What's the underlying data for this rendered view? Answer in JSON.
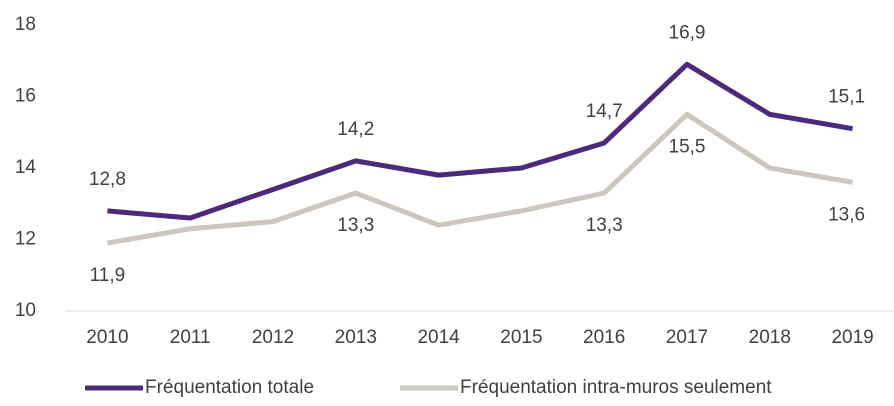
{
  "chart_data": {
    "type": "line",
    "categories": [
      "2010",
      "2011",
      "2012",
      "2013",
      "2014",
      "2015",
      "2016",
      "2017",
      "2018",
      "2019"
    ],
    "series": [
      {
        "name": "Fréquentation totale",
        "color": "#4b2a7c",
        "values": [
          12.8,
          12.6,
          13.4,
          14.2,
          13.8,
          14.0,
          14.7,
          16.9,
          15.5,
          15.1
        ],
        "value_labels": [
          "12,8",
          null,
          null,
          "14,2",
          null,
          null,
          "14,7",
          "16,9",
          null,
          "15,1"
        ]
      },
      {
        "name": "Fréquentation intra-muros seulement",
        "color": "#cdc6bf",
        "values": [
          11.9,
          12.3,
          12.5,
          13.3,
          12.4,
          12.8,
          13.3,
          15.5,
          14.0,
          13.6
        ],
        "value_labels": [
          "11,9",
          null,
          null,
          "13,3",
          null,
          null,
          "13,3",
          "15,5",
          null,
          "13,6"
        ]
      }
    ],
    "ylim": [
      10,
      18
    ],
    "yticks": [
      10,
      12,
      14,
      16,
      18
    ],
    "grid": false,
    "legend": "bottom"
  }
}
